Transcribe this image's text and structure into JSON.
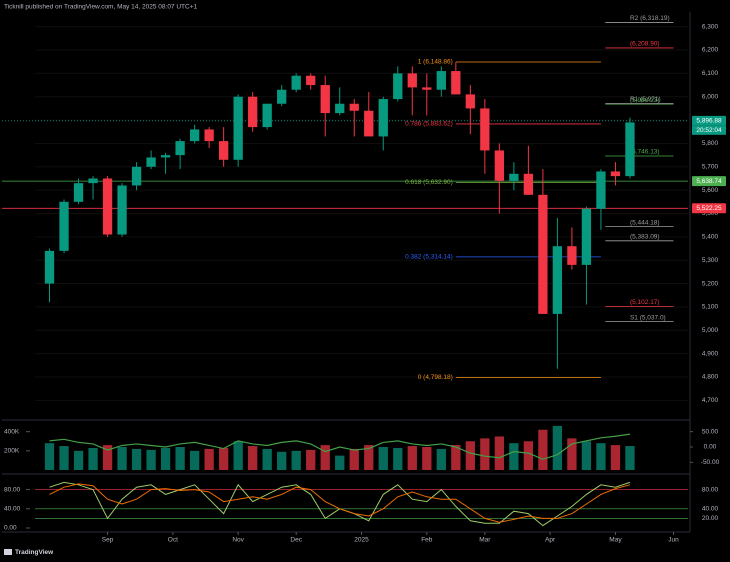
{
  "header": "Ticknill published on TradingView.com, May 14, 2025 08:07 UTC+1",
  "footer": "TradingView",
  "chart_data": {
    "type": "candlestick",
    "xlim": [
      -1,
      44
    ],
    "xticks": [
      {
        "value": 4,
        "label": "Sep"
      },
      {
        "value": 8.5,
        "label": "Oct"
      },
      {
        "value": 13,
        "label": "Nov"
      },
      {
        "value": 17,
        "label": "Dec"
      },
      {
        "value": 21.5,
        "label": "2025"
      },
      {
        "value": 26,
        "label": "Feb"
      },
      {
        "value": 30,
        "label": "Mar"
      },
      {
        "value": 34.5,
        "label": "Apr"
      },
      {
        "value": 39,
        "label": "May"
      },
      {
        "value": 43,
        "label": "Jun"
      }
    ],
    "ylim": [
      4650,
      6350
    ],
    "yticks": [
      {
        "value": 4700,
        "label": "4,700"
      },
      {
        "value": 4800,
        "label": "4,800"
      },
      {
        "value": 4900,
        "label": "4,900"
      },
      {
        "value": 5000,
        "label": "5,000"
      },
      {
        "value": 5100,
        "label": "5,100"
      },
      {
        "value": 5200,
        "label": "5,200"
      },
      {
        "value": 5300,
        "label": "5,300"
      },
      {
        "value": 5400,
        "label": "5,400"
      },
      {
        "value": 5500,
        "label": "5,500"
      },
      {
        "value": 5600,
        "label": "5,600"
      },
      {
        "value": 5700,
        "label": "5,700"
      },
      {
        "value": 5800,
        "label": "5,800"
      },
      {
        "value": 5900,
        "label": "5,900"
      },
      {
        "value": 6000,
        "label": "6,000"
      },
      {
        "value": 6100,
        "label": "6,100"
      },
      {
        "value": 6200,
        "label": "6,200"
      },
      {
        "value": 6300,
        "label": "6,300"
      }
    ],
    "open": [
      5200,
      5340,
      5550,
      5630,
      5650,
      5410,
      5620,
      5700,
      5740,
      5750,
      5810,
      5860,
      5810,
      5730,
      6000,
      5870,
      5970,
      6030,
      6090,
      6050,
      5930,
      5970,
      5940,
      5830,
      5990,
      6100,
      6040,
      6030,
      6110,
      6010,
      5950,
      5770,
      5640,
      5670,
      5580,
      5070,
      5360,
      5280,
      5520,
      5680,
      5660
    ],
    "high": [
      5350,
      5560,
      5650,
      5660,
      5660,
      5630,
      5720,
      5770,
      5760,
      5820,
      5880,
      5870,
      5870,
      6010,
      6020,
      5970,
      6050,
      6100,
      6100,
      6090,
      6040,
      5990,
      6020,
      6000,
      6130,
      6130,
      6100,
      6130,
      6148,
      6050,
      5990,
      5800,
      5720,
      5790,
      5690,
      5480,
      5440,
      5530,
      5690,
      5720,
      5910
    ],
    "low": [
      5120,
      5330,
      5540,
      5560,
      5400,
      5400,
      5600,
      5690,
      5670,
      5690,
      5800,
      5780,
      5700,
      5700,
      5850,
      5860,
      5960,
      6020,
      6030,
      5830,
      5920,
      5830,
      5840,
      5770,
      5980,
      5920,
      5920,
      6000,
      6010,
      5840,
      5670,
      5500,
      5600,
      5580,
      5070,
      4835,
      5260,
      5110,
      5430,
      5620,
      5650
    ],
    "close": [
      5340,
      5550,
      5630,
      5650,
      5410,
      5620,
      5700,
      5740,
      5750,
      5810,
      5860,
      5810,
      5730,
      6000,
      5870,
      5970,
      6030,
      6090,
      6050,
      5930,
      5970,
      5940,
      5830,
      5990,
      6100,
      6040,
      6030,
      6110,
      6010,
      5950,
      5770,
      5640,
      5670,
      5580,
      5070,
      5360,
      5280,
      5520,
      5680,
      5660,
      5890
    ],
    "up_color": "#089981",
    "down_color": "#f23645",
    "fib_levels": [
      {
        "label": "1 (6,148.86)",
        "value": 6148.86,
        "color": "#f7931a"
      },
      {
        "label": "0.786 (5,883.62)",
        "value": 5883.62,
        "color": "#f23645"
      },
      {
        "label": "0.618 (5,632.90)",
        "value": 5632.9,
        "color": "#7cb342"
      },
      {
        "label": "0.382 (5,314.14)",
        "value": 5314.14,
        "color": "#2962ff"
      },
      {
        "label": "0 (4,798.18)",
        "value": 4798.18,
        "color": "#f7931a"
      }
    ],
    "pivot_levels": [
      {
        "label": "R2 (6,318.19)",
        "value": 6318.19,
        "color": "#9e9e9e"
      },
      {
        "label": "(6,208.90)",
        "value": 6208.9,
        "color": "#f23645"
      },
      {
        "label": "(5,968.23)",
        "value": 5968.23,
        "color": "#4caf50"
      },
      {
        "label": "R1 (5,971)",
        "value": 5971,
        "color": "#9e9e9e"
      },
      {
        "label": "(5,746.13)",
        "value": 5746.13,
        "color": "#4caf50"
      },
      {
        "label": "(5,444.18)",
        "value": 5444.18,
        "color": "#9e9e9e"
      },
      {
        "label": "(5,383.09)",
        "value": 5383.09,
        "color": "#9e9e9e"
      },
      {
        "label": "(5,102.17)",
        "value": 5102.17,
        "color": "#f23645"
      },
      {
        "label": "S1 (5,037.0)",
        "value": 5037.0,
        "color": "#9e9e9e"
      }
    ],
    "price_tags": [
      {
        "value": 5896.88,
        "label": "5,896.88",
        "color": "#089981"
      },
      {
        "value": 5638.74,
        "label": "5,638.74",
        "color": "#4caf50"
      },
      {
        "value": 5522.25,
        "label": "5,522.25",
        "color": "#f23645"
      }
    ],
    "countdown": "20:52:04",
    "volume": {
      "values": [
        280,
        250,
        200,
        230,
        260,
        240,
        220,
        210,
        230,
        240,
        200,
        220,
        230,
        300,
        250,
        220,
        190,
        200,
        210,
        260,
        150,
        220,
        260,
        240,
        230,
        250,
        240,
        220,
        260,
        300,
        330,
        350,
        280,
        300,
        420,
        460,
        330,
        300,
        280,
        260,
        250
      ],
      "ylim": [
        0,
        480
      ],
      "yticks": [
        {
          "value": 200,
          "label": "200K"
        },
        {
          "value": 400,
          "label": "400K"
        }
      ],
      "oscillator": {
        "values": [
          20,
          25,
          15,
          10,
          -10,
          5,
          10,
          5,
          0,
          10,
          15,
          5,
          -5,
          20,
          10,
          5,
          15,
          20,
          10,
          -15,
          0,
          -10,
          -5,
          15,
          20,
          10,
          5,
          10,
          0,
          -20,
          -30,
          -35,
          -15,
          -20,
          -40,
          -25,
          10,
          20,
          30,
          35,
          42
        ],
        "color": "#43a047",
        "y2lim": [
          -75,
          75
        ],
        "y2ticks": [
          {
            "value": 50,
            "label": "50.00"
          },
          {
            "value": 0,
            "label": "0.00"
          },
          {
            "value": -50,
            "label": "-50.00"
          }
        ]
      }
    },
    "stochastic": {
      "ylim": [
        0,
        100
      ],
      "yticks": [
        {
          "value": 80,
          "label": "80.00"
        },
        {
          "value": 40,
          "label": "40.00"
        },
        {
          "value": 0,
          "label": "0.00"
        }
      ],
      "y2ticks": [
        {
          "value": 80,
          "label": "80.00"
        },
        {
          "value": 40,
          "label": "40.00"
        },
        {
          "value": 20,
          "label": "20.00"
        }
      ],
      "series": [
        {
          "color": "#9ccc65",
          "values": [
            85,
            95,
            90,
            80,
            20,
            60,
            85,
            90,
            70,
            80,
            90,
            60,
            30,
            90,
            55,
            70,
            85,
            90,
            70,
            20,
            40,
            30,
            15,
            70,
            90,
            60,
            55,
            80,
            45,
            15,
            10,
            10,
            35,
            30,
            5,
            25,
            45,
            70,
            90,
            85,
            95
          ]
        },
        {
          "color": "#ef6c00",
          "values": [
            70,
            85,
            92,
            88,
            60,
            50,
            60,
            80,
            82,
            78,
            80,
            75,
            55,
            60,
            65,
            60,
            70,
            85,
            80,
            55,
            40,
            30,
            25,
            40,
            65,
            75,
            65,
            60,
            60,
            40,
            20,
            12,
            18,
            25,
            20,
            20,
            30,
            50,
            70,
            82,
            90
          ]
        }
      ]
    }
  }
}
